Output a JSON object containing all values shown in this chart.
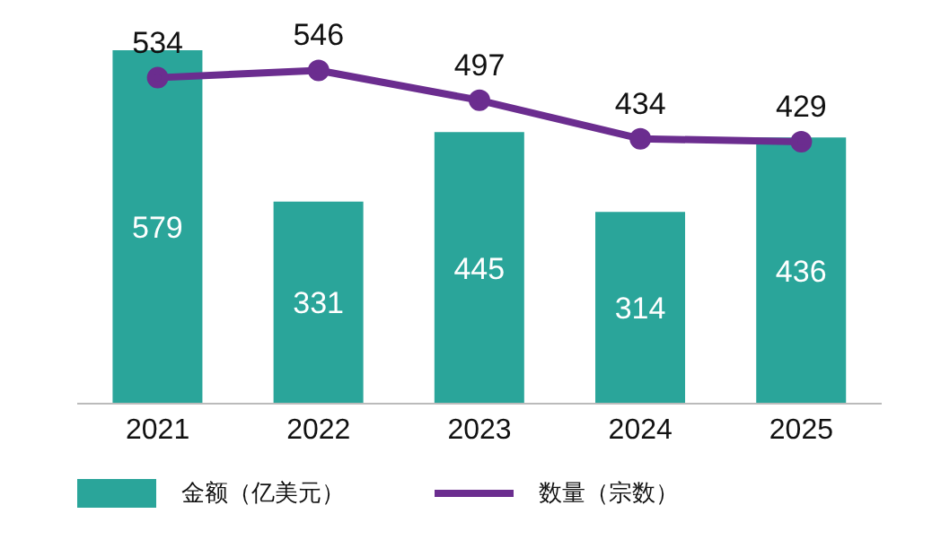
{
  "chart_data": {
    "type": "bar",
    "categories": [
      "2021",
      "2022",
      "2023",
      "2024",
      "2025"
    ],
    "series": [
      {
        "name": "金额（亿美元）",
        "color": "#2aa59a",
        "values": [
          579,
          331,
          445,
          314,
          436
        ]
      },
      {
        "name": "数量（宗数）",
        "type": "line",
        "color": "#6b2d8f",
        "values": [
          534,
          546,
          497,
          434,
          429
        ]
      }
    ],
    "ylim": [
      0,
      579
    ],
    "data_labels": true,
    "legend": "bottom left",
    "marker": "circle",
    "line_style": "solid",
    "grid": false,
    "tick_labels": "x"
  }
}
